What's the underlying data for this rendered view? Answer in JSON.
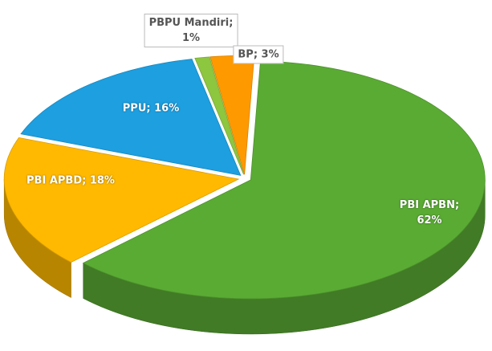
{
  "chart_data": {
    "type": "pie",
    "values": [
      62,
      18,
      16,
      1,
      3
    ],
    "value_labels": [
      "PBI APBN; 62%",
      "PBI APBD; 18%",
      "PPU; 16%",
      "PBPU Mandiri;\n1%",
      "BP; 3%"
    ],
    "colors": [
      "#5aab34",
      "#ffb900",
      "#1d9fe0",
      "#8dc63f",
      "#ff9900"
    ]
  }
}
